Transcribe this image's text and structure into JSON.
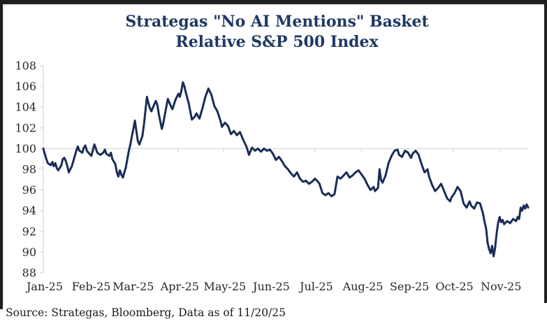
{
  "title": {
    "line1": "Strategas \"No AI Mentions\" Basket",
    "line2": "Relative S&P 500 Index"
  },
  "source_note": "Source: Strategas, Bloomberg, Data as of 11/20/25",
  "colors": {
    "line": "#1a2c57",
    "title_text": "#1f3864",
    "axis_lines": "#d9d9d9",
    "tick_text": "#262626",
    "frame": "#1f1f1f"
  },
  "chart_data": {
    "type": "line",
    "title": "Strategas \"No AI Mentions\" Basket Relative S&P 500 Index",
    "series_name": "No AI Mentions basket relative to S&P 500 (indexed, start = 100)",
    "legend": "none",
    "grid": "single horizontal gridline at 100 only",
    "x_axis": {
      "unit": "days since Jan 1 2025",
      "tick_labels": [
        "Jan-25",
        "Feb-25",
        "Mar-25",
        "Apr-25",
        "May-25",
        "Jun-25",
        "Jul-25",
        "Aug-25",
        "Sep-25",
        "Oct-25",
        "Nov-25"
      ],
      "tick_days": [
        0,
        31,
        59,
        90,
        120,
        151,
        181,
        212,
        243,
        273,
        304
      ],
      "domain_days": [
        0,
        323
      ]
    },
    "y_axis": {
      "ticks": [
        88,
        90,
        92,
        94,
        96,
        98,
        100,
        102,
        104,
        106,
        108
      ],
      "range": [
        88,
        108
      ]
    },
    "gridlines_y": [
      100
    ],
    "points_day_value": [
      [
        0,
        100
      ],
      [
        1,
        99.5
      ],
      [
        2,
        99
      ],
      [
        3,
        98.6
      ],
      [
        5,
        98.4
      ],
      [
        6,
        98.7
      ],
      [
        7,
        98.3
      ],
      [
        8,
        98.6
      ],
      [
        9,
        98.1
      ],
      [
        10,
        97.9
      ],
      [
        12,
        98.4
      ],
      [
        13,
        99
      ],
      [
        14,
        99.1
      ],
      [
        15,
        98.8
      ],
      [
        16,
        98.3
      ],
      [
        17,
        97.7
      ],
      [
        19,
        98.3
      ],
      [
        20,
        98.8
      ],
      [
        21,
        99.3
      ],
      [
        22,
        99.8
      ],
      [
        23,
        100.2
      ],
      [
        24,
        99.8
      ],
      [
        26,
        99.6
      ],
      [
        27,
        100.1
      ],
      [
        28,
        100.3
      ],
      [
        29,
        99.8
      ],
      [
        30,
        99.6
      ],
      [
        32,
        99.3
      ],
      [
        34,
        100.4
      ],
      [
        35,
        100
      ],
      [
        36,
        99.6
      ],
      [
        38,
        99.4
      ],
      [
        40,
        99.6
      ],
      [
        41,
        99.9
      ],
      [
        42,
        99.5
      ],
      [
        44,
        99.3
      ],
      [
        45,
        99.6
      ],
      [
        46,
        99
      ],
      [
        48,
        98.5
      ],
      [
        49,
        97.7
      ],
      [
        50,
        97.3
      ],
      [
        51,
        97.9
      ],
      [
        52,
        97.5
      ],
      [
        53,
        97.2
      ],
      [
        55,
        98.2
      ],
      [
        56,
        99
      ],
      [
        57,
        99.8
      ],
      [
        58,
        100.4
      ],
      [
        59,
        101.2
      ],
      [
        60,
        101.9
      ],
      [
        61,
        102.7
      ],
      [
        62,
        101.7
      ],
      [
        63,
        100.7
      ],
      [
        64,
        100.4
      ],
      [
        66,
        101.2
      ],
      [
        67,
        102.3
      ],
      [
        68,
        103.6
      ],
      [
        69,
        105
      ],
      [
        70,
        104.4
      ],
      [
        71,
        103.9
      ],
      [
        72,
        103.6
      ],
      [
        74,
        104.3
      ],
      [
        75,
        104.6
      ],
      [
        76,
        104.2
      ],
      [
        77,
        103.3
      ],
      [
        79,
        101.9
      ],
      [
        80,
        102.5
      ],
      [
        81,
        103.3
      ],
      [
        83,
        104.8
      ],
      [
        85,
        104.1
      ],
      [
        86,
        103.8
      ],
      [
        88,
        104.7
      ],
      [
        90,
        105.3
      ],
      [
        91,
        105
      ],
      [
        92,
        105.6
      ],
      [
        93,
        106.4
      ],
      [
        94,
        106
      ],
      [
        95,
        105.4
      ],
      [
        97,
        104.3
      ],
      [
        99,
        102.8
      ],
      [
        101,
        103.1
      ],
      [
        102,
        103.4
      ],
      [
        104,
        102.9
      ],
      [
        106,
        103.9
      ],
      [
        108,
        105
      ],
      [
        110,
        105.8
      ],
      [
        112,
        105.2
      ],
      [
        114,
        104.1
      ],
      [
        116,
        103.6
      ],
      [
        118,
        102.7
      ],
      [
        119,
        102.1
      ],
      [
        121,
        102.5
      ],
      [
        123,
        102.2
      ],
      [
        125,
        101.4
      ],
      [
        127,
        101.7
      ],
      [
        129,
        101.3
      ],
      [
        131,
        101.6
      ],
      [
        133,
        100.9
      ],
      [
        135,
        100.3
      ],
      [
        136,
        99.9
      ],
      [
        137,
        99.4
      ],
      [
        139,
        100.1
      ],
      [
        141,
        99.8
      ],
      [
        143,
        100
      ],
      [
        145,
        99.7
      ],
      [
        147,
        100
      ],
      [
        149,
        99.8
      ],
      [
        151,
        99.9
      ],
      [
        153,
        99.5
      ],
      [
        155,
        98.9
      ],
      [
        157,
        99.2
      ],
      [
        159,
        98.8
      ],
      [
        161,
        98.3
      ],
      [
        163,
        98
      ],
      [
        165,
        97.6
      ],
      [
        167,
        97.3
      ],
      [
        169,
        97.7
      ],
      [
        171,
        97.1
      ],
      [
        173,
        96.8
      ],
      [
        175,
        96.9
      ],
      [
        177,
        96.6
      ],
      [
        179,
        96.8
      ],
      [
        181,
        97.1
      ],
      [
        183,
        96.8
      ],
      [
        184,
        96.6
      ],
      [
        186,
        95.7
      ],
      [
        188,
        95.5
      ],
      [
        190,
        95.7
      ],
      [
        192,
        95.4
      ],
      [
        194,
        95.6
      ],
      [
        196,
        97.3
      ],
      [
        198,
        97.1
      ],
      [
        200,
        97.4
      ],
      [
        202,
        97.7
      ],
      [
        204,
        97.2
      ],
      [
        206,
        97.4
      ],
      [
        208,
        97.7
      ],
      [
        210,
        97.9
      ],
      [
        212,
        97.5
      ],
      [
        214,
        97.1
      ],
      [
        216,
        96.5
      ],
      [
        218,
        96
      ],
      [
        220,
        96.3
      ],
      [
        221,
        95.9
      ],
      [
        223,
        96.2
      ],
      [
        224,
        98
      ],
      [
        225,
        97
      ],
      [
        226,
        96.7
      ],
      [
        228,
        97.4
      ],
      [
        230,
        98.6
      ],
      [
        232,
        99.3
      ],
      [
        234,
        99.8
      ],
      [
        236,
        99.9
      ],
      [
        237,
        99.4
      ],
      [
        239,
        99.2
      ],
      [
        241,
        99.8
      ],
      [
        243,
        99.6
      ],
      [
        245,
        99.1
      ],
      [
        246,
        99.5
      ],
      [
        248,
        99.8
      ],
      [
        250,
        99.4
      ],
      [
        252,
        98.5
      ],
      [
        254,
        97.7
      ],
      [
        256,
        98
      ],
      [
        257,
        97.3
      ],
      [
        259,
        96.5
      ],
      [
        261,
        95.9
      ],
      [
        263,
        96.2
      ],
      [
        265,
        96.6
      ],
      [
        267,
        95.9
      ],
      [
        269,
        95.2
      ],
      [
        271,
        94.9
      ],
      [
        272,
        95.3
      ],
      [
        274,
        95.7
      ],
      [
        276,
        96.3
      ],
      [
        278,
        95.9
      ],
      [
        280,
        94.7
      ],
      [
        282,
        94.3
      ],
      [
        284,
        94.9
      ],
      [
        285,
        94.5
      ],
      [
        287,
        94.2
      ],
      [
        289,
        94.8
      ],
      [
        291,
        94.7
      ],
      [
        293,
        93.7
      ],
      [
        294,
        92.9
      ],
      [
        295,
        92.3
      ],
      [
        296,
        90.9
      ],
      [
        297,
        90.3
      ],
      [
        298,
        89.9
      ],
      [
        299,
        90.6
      ],
      [
        300,
        89.6
      ],
      [
        301,
        90.4
      ],
      [
        302,
        91.8
      ],
      [
        303,
        92.8
      ],
      [
        304,
        93.4
      ],
      [
        305,
        92.9
      ],
      [
        306,
        93.1
      ],
      [
        307,
        92.7
      ],
      [
        309,
        93
      ],
      [
        311,
        92.8
      ],
      [
        313,
        93.2
      ],
      [
        315,
        93
      ],
      [
        316,
        93.4
      ],
      [
        317,
        93.2
      ],
      [
        318,
        94.3
      ],
      [
        319,
        94
      ],
      [
        320,
        94.5
      ],
      [
        321,
        94.2
      ],
      [
        322,
        94.6
      ],
      [
        323,
        94.3
      ]
    ]
  }
}
